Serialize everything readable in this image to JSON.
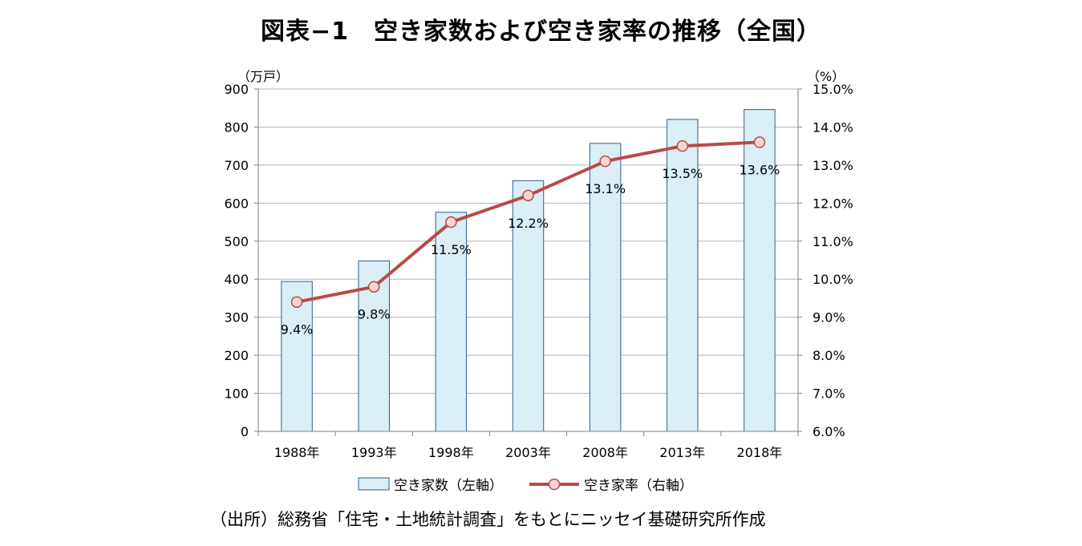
{
  "chart_data": {
    "type": "bar+line",
    "title": "図表−1　空き家数および空き家率の推移（全国）",
    "left_unit": "（万戸）",
    "right_unit": "（%）",
    "categories": [
      "1988年",
      "1993年",
      "1998年",
      "2003年",
      "2008年",
      "2013年",
      "2018年"
    ],
    "series": [
      {
        "name": "空き家数（左軸）",
        "type": "bar",
        "axis": "left",
        "values": [
          394,
          448,
          576,
          659,
          757,
          820,
          846
        ]
      },
      {
        "name": "空き家率（右軸）",
        "type": "line",
        "axis": "right",
        "values": [
          9.4,
          9.8,
          11.5,
          12.2,
          13.1,
          13.5,
          13.6
        ],
        "labels": [
          "9.4%",
          "9.8%",
          "11.5%",
          "12.2%",
          "13.1%",
          "13.5%",
          "13.6%"
        ]
      }
    ],
    "left_axis": {
      "min": 0,
      "max": 900,
      "step": 100,
      "ticks": [
        "0",
        "100",
        "200",
        "300",
        "400",
        "500",
        "600",
        "700",
        "800",
        "900"
      ]
    },
    "right_axis": {
      "min": 6.0,
      "max": 15.0,
      "step": 1.0,
      "ticks": [
        "6.0%",
        "7.0%",
        "8.0%",
        "9.0%",
        "10.0%",
        "11.0%",
        "12.0%",
        "13.0%",
        "14.0%",
        "15.0%"
      ]
    },
    "grid": true,
    "legend_position": "bottom",
    "source": "（出所）総務省「住宅・土地統計調査」をもとにニッセイ基礎研究所作成"
  },
  "colors": {
    "bar_fill": "#daeef5",
    "bar_stroke": "#2f5d8a",
    "line": "#b94a48",
    "marker_fill": "#f6d5d2",
    "grid": "#b3b3b3",
    "axis": "#7f7f7f"
  }
}
